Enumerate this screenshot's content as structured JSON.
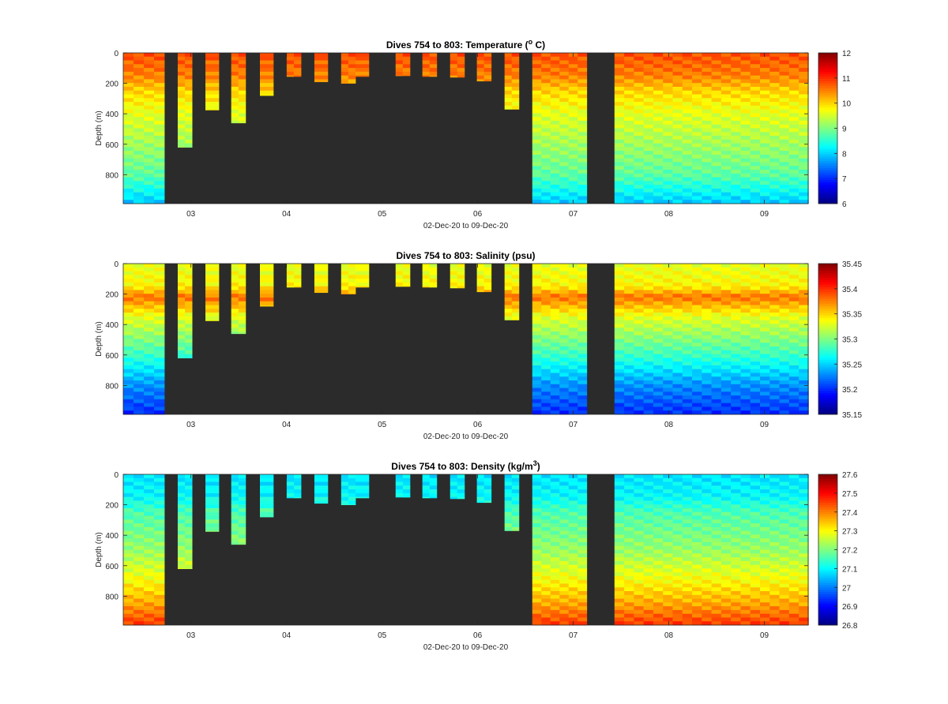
{
  "chart_data": [
    {
      "type": "heatmap",
      "variable": "temperature",
      "title_main": "Dives 754 to 803: Temperature (",
      "title_sup": "o",
      "title_tail": " C)",
      "xlabel": "02-Dec-20 to 09-Dec-20",
      "ylabel": "Depth (m)",
      "x_ticks": [
        "03",
        "04",
        "05",
        "06",
        "07",
        "08",
        "09"
      ],
      "y_ticks": [
        "0",
        "200",
        "400",
        "600",
        "800"
      ],
      "xlim": [
        "02-Dec-20 07:00",
        "09-Dec-20 11:00"
      ],
      "ylim": [
        0,
        990
      ],
      "colormap": "jet",
      "clim": [
        6,
        12
      ],
      "colorbar_ticks": [
        "12",
        "11",
        "10",
        "9",
        "8",
        "7",
        "6"
      ],
      "profile_columns_days": [
        {
          "start": 0.0,
          "end": 0.43,
          "max_depth": 990
        },
        {
          "start": 0.57,
          "end": 0.72,
          "max_depth": 620
        },
        {
          "start": 0.86,
          "end": 1.0,
          "max_depth": 375
        },
        {
          "start": 1.13,
          "end": 1.28,
          "max_depth": 460
        },
        {
          "start": 1.43,
          "end": 1.57,
          "max_depth": 280
        },
        {
          "start": 1.71,
          "end": 1.86,
          "max_depth": 155
        },
        {
          "start": 2.0,
          "end": 2.14,
          "max_depth": 190
        },
        {
          "start": 2.28,
          "end": 2.43,
          "max_depth": 200
        },
        {
          "start": 2.43,
          "end": 2.57,
          "max_depth": 155
        },
        {
          "start": 2.85,
          "end": 3.0,
          "max_depth": 150
        },
        {
          "start": 3.13,
          "end": 3.28,
          "max_depth": 155
        },
        {
          "start": 3.42,
          "end": 3.57,
          "max_depth": 160
        },
        {
          "start": 3.7,
          "end": 3.85,
          "max_depth": 185
        },
        {
          "start": 3.99,
          "end": 4.14,
          "max_depth": 370
        },
        {
          "start": 4.28,
          "end": 4.85,
          "max_depth": 990
        },
        {
          "start": 5.14,
          "end": 7.17,
          "max_depth": 990
        }
      ],
      "depth_profile": [
        {
          "depth": 0,
          "value": 10.8
        },
        {
          "depth": 150,
          "value": 10.5
        },
        {
          "depth": 250,
          "value": 10.0
        },
        {
          "depth": 400,
          "value": 9.6
        },
        {
          "depth": 600,
          "value": 9.2
        },
        {
          "depth": 800,
          "value": 8.8
        },
        {
          "depth": 990,
          "value": 7.9
        }
      ]
    },
    {
      "type": "heatmap",
      "variable": "salinity",
      "title_main": "Dives 754 to 803: Salinity (psu)",
      "title_sup": "",
      "title_tail": "",
      "xlabel": "02-Dec-20 to 09-Dec-20",
      "ylabel": "Depth (m)",
      "x_ticks": [
        "03",
        "04",
        "05",
        "06",
        "07",
        "08",
        "09"
      ],
      "y_ticks": [
        "0",
        "200",
        "400",
        "600",
        "800"
      ],
      "xlim": [
        "02-Dec-20 07:00",
        "09-Dec-20 11:00"
      ],
      "ylim": [
        0,
        990
      ],
      "colormap": "jet",
      "clim": [
        35.15,
        35.45
      ],
      "colorbar_ticks": [
        "35.45",
        "35.4",
        "35.35",
        "35.3",
        "35.25",
        "35.2",
        "35.15"
      ],
      "profile_columns_days": "same as temperature",
      "depth_profile": [
        {
          "depth": 0,
          "value": 35.33
        },
        {
          "depth": 150,
          "value": 35.34
        },
        {
          "depth": 220,
          "value": 35.38
        },
        {
          "depth": 350,
          "value": 35.33
        },
        {
          "depth": 600,
          "value": 35.28
        },
        {
          "depth": 800,
          "value": 35.23
        },
        {
          "depth": 990,
          "value": 35.2
        }
      ]
    },
    {
      "type": "heatmap",
      "variable": "density",
      "title_main": "Dives 754 to 803: Density (kg/m",
      "title_sup": "3",
      "title_tail": ")",
      "xlabel": "02-Dec-20 to 09-Dec-20",
      "ylabel": "Depth (m)",
      "x_ticks": [
        "03",
        "04",
        "05",
        "06",
        "07",
        "08",
        "09"
      ],
      "y_ticks": [
        "0",
        "200",
        "400",
        "600",
        "800"
      ],
      "xlim": [
        "02-Dec-20 07:00",
        "09-Dec-20 11:00"
      ],
      "ylim": [
        0,
        990
      ],
      "colormap": "jet",
      "clim": [
        26.8,
        27.6
      ],
      "colorbar_ticks": [
        "27.6",
        "27.5",
        "27.4",
        "27.3",
        "27.2",
        "27.1",
        "27",
        "26.9",
        "26.8"
      ],
      "profile_columns_days": "same as temperature",
      "depth_profile": [
        {
          "depth": 0,
          "value": 27.08
        },
        {
          "depth": 150,
          "value": 27.1
        },
        {
          "depth": 250,
          "value": 27.16
        },
        {
          "depth": 500,
          "value": 27.22
        },
        {
          "depth": 700,
          "value": 27.3
        },
        {
          "depth": 850,
          "value": 27.37
        },
        {
          "depth": 990,
          "value": 27.46
        }
      ]
    }
  ],
  "colors": {
    "no_data": "#2b2b2b",
    "background": "#ffffff"
  }
}
